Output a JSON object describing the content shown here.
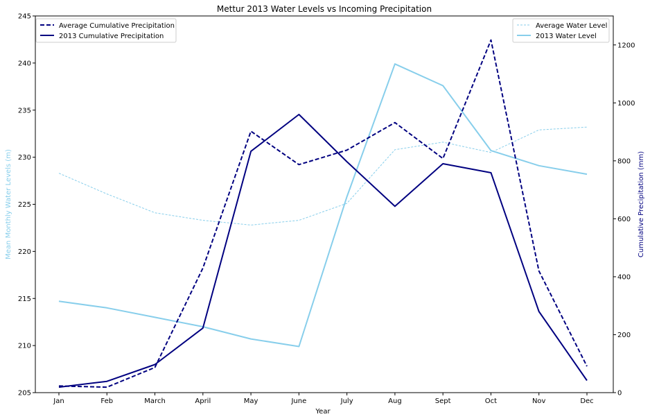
{
  "chart_data": {
    "type": "line",
    "title": "Mettur 2013 Water Levels vs Incoming Precipitation",
    "xlabel": "Year",
    "ylabel_left": "Mean Monthly Water Levels (m)",
    "ylabel_right": "Cumulative Precipitation (mm)",
    "categories": [
      "Jan",
      "Feb",
      "March",
      "April",
      "May",
      "June",
      "July",
      "Aug",
      "Sept",
      "Oct",
      "Nov",
      "Dec"
    ],
    "ylim_left": [
      205,
      245
    ],
    "yticks_left": [
      "205",
      "210",
      "215",
      "220",
      "225",
      "230",
      "235",
      "240",
      "245"
    ],
    "ylim_right": [
      0,
      1300
    ],
    "yticks_right": [
      "0",
      "200",
      "400",
      "600",
      "800",
      "1000",
      "1200"
    ],
    "grid": false,
    "colors": {
      "water": "#87ceeb",
      "precip": "#000080",
      "left_label": "#87ceeb",
      "right_label": "#000080"
    },
    "legend_left": {
      "placement": "top-left",
      "entries": [
        "Average Cumulative Precipitation",
        "2013 Cumulative Precipitation"
      ]
    },
    "legend_right": {
      "placement": "top-right",
      "entries": [
        "Average Water Level",
        "2013 Water Level"
      ]
    },
    "series": [
      {
        "name": "Average Water Level",
        "axis": "left",
        "style": "thin-dashed",
        "values": [
          228.3,
          226.1,
          224.1,
          223.3,
          222.8,
          223.3,
          225.1,
          230.8,
          231.6,
          230.5,
          232.9,
          233.2
        ]
      },
      {
        "name": "2013 Water Level",
        "axis": "left",
        "style": "solid",
        "values": [
          214.7,
          214.0,
          213.0,
          212.0,
          210.7,
          209.9,
          225.8,
          239.9,
          237.6,
          230.7,
          229.1,
          228.2
        ]
      },
      {
        "name": "Average Cumulative Precipitation",
        "axis": "right",
        "style": "thick-dashed",
        "values": [
          23,
          19,
          87,
          430,
          902,
          787,
          837,
          932,
          808,
          1217,
          420,
          91
        ]
      },
      {
        "name": "2013 Cumulative Precipitation",
        "axis": "right",
        "style": "solid",
        "values": [
          19,
          39,
          97,
          223,
          833,
          960,
          797,
          643,
          790,
          759,
          280,
          42
        ]
      }
    ]
  }
}
